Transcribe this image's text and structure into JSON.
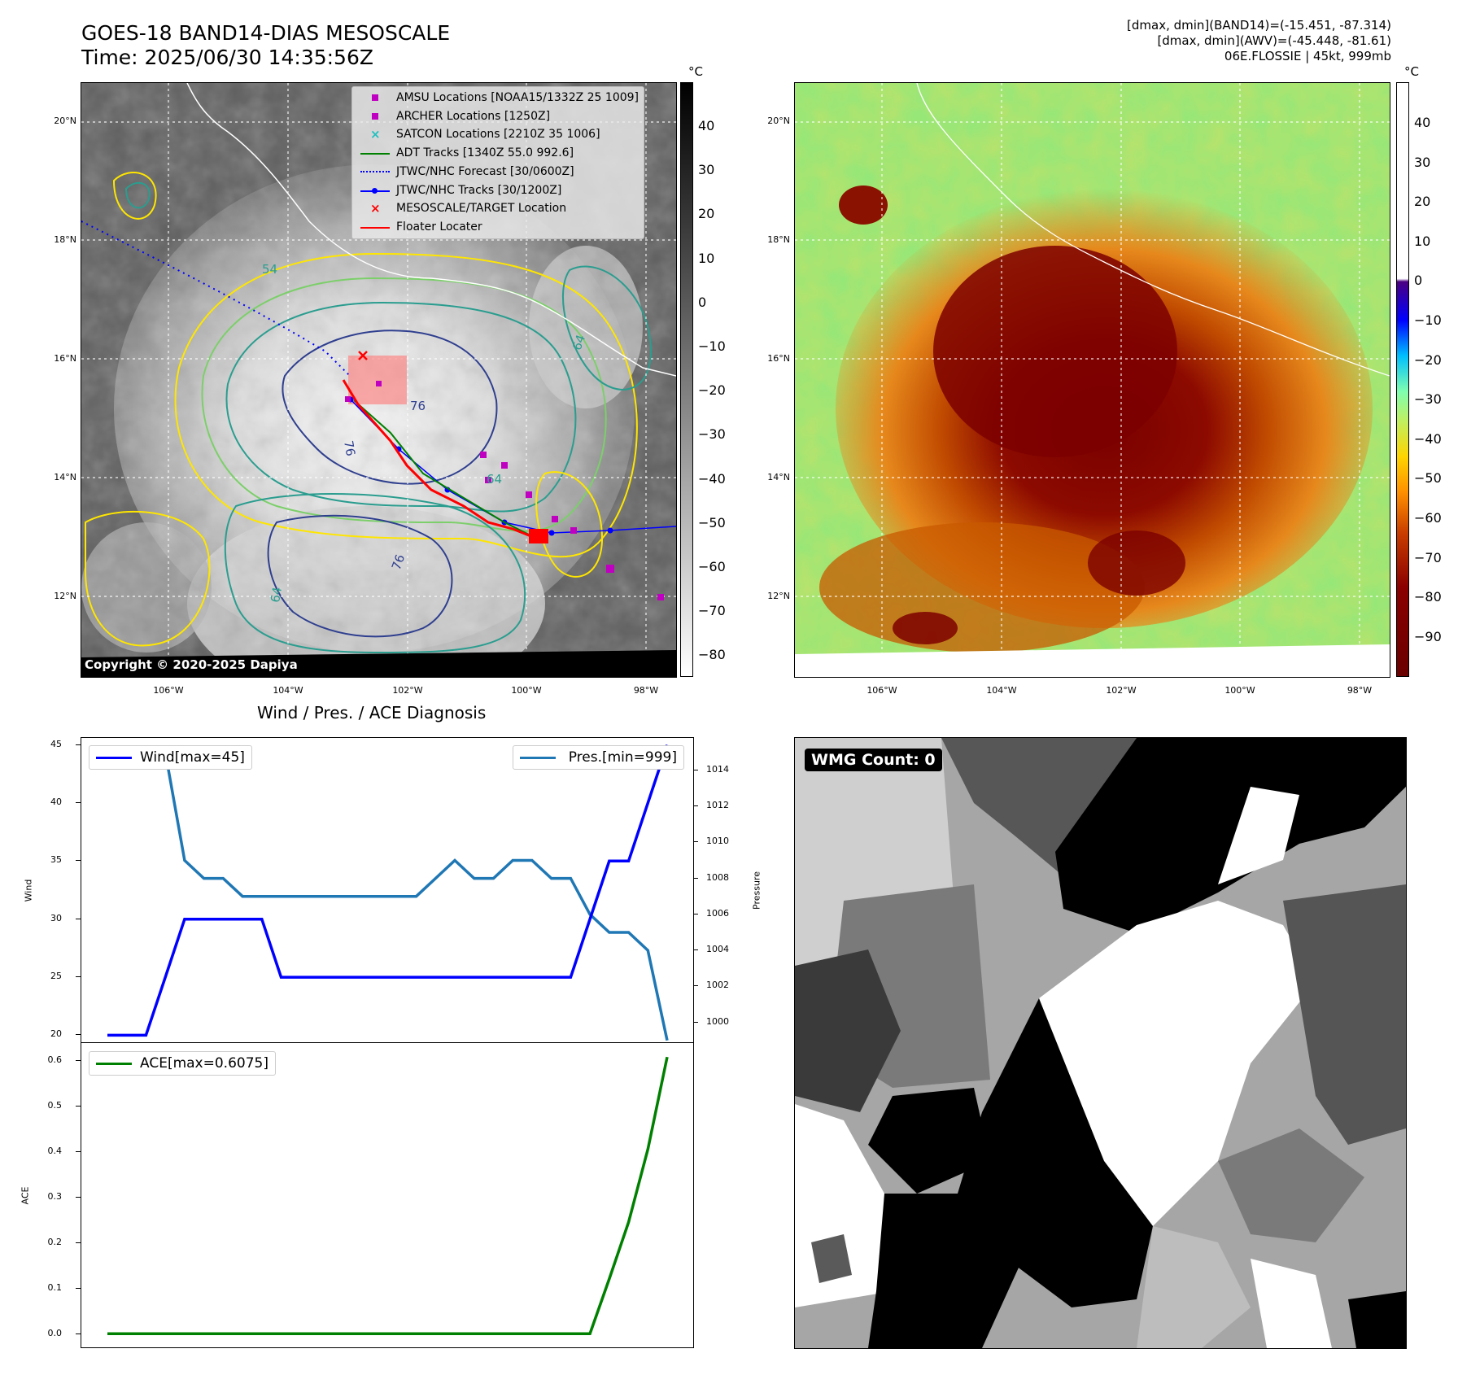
{
  "header": {
    "title_line1": "GOES-18 BAND14-DIAS MESOSCALE",
    "title_line2": "Time: 2025/06/30 14:35:56Z",
    "info_line1": "[dmax, dmin](BAND14)=(-15.451, -87.314)",
    "info_line2": "[dmax, dmin](AWV)=(-45.448, -81.61)",
    "info_line3": "06E.FLOSSIE | 45kt, 999mb"
  },
  "map_axes": {
    "lat_labels": [
      "20°N",
      "18°N",
      "16°N",
      "14°N",
      "12°N"
    ],
    "lon_labels": [
      "106°W",
      "104°W",
      "102°W",
      "100°W",
      "98°W"
    ]
  },
  "colorbar_ir": {
    "unit": "°C",
    "ticks": [
      "40",
      "30",
      "20",
      "10",
      "0",
      "−10",
      "−20",
      "−30",
      "−40",
      "−50",
      "−60",
      "−70",
      "−80"
    ]
  },
  "colorbar_dias": {
    "unit": "°C",
    "ticks": [
      "40",
      "30",
      "20",
      "10",
      "0",
      "−10",
      "−20",
      "−30",
      "−40",
      "−50",
      "−60",
      "−70",
      "−80",
      "−90"
    ]
  },
  "ir_contour_labels": [
    "54",
    "76",
    "76",
    "64",
    "64",
    "64",
    "76"
  ],
  "legend": {
    "items": [
      {
        "label": "AMSU Locations [NOAA15/1332Z 25 1009]",
        "symbol": "square",
        "color": "#c000c0"
      },
      {
        "label": "ARCHER Locations [1250Z]",
        "symbol": "square",
        "color": "#c000c0"
      },
      {
        "label": "SATCON Locations [2210Z 35 1006]",
        "symbol": "x",
        "color": "#20c0c0"
      },
      {
        "label": "ADT Tracks [1340Z 55.0 992.6]",
        "symbol": "line",
        "color": "#008000"
      },
      {
        "label": "JTWC/NHC Forecast [30/0600Z]",
        "symbol": "dotted",
        "color": "#0000ff"
      },
      {
        "label": "JTWC/NHC Tracks [30/1200Z]",
        "symbol": "line-dot",
        "color": "#0000ff"
      },
      {
        "label": "MESOSCALE/TARGET Location",
        "symbol": "x",
        "color": "#ff0000"
      },
      {
        "label": "Floater Locater",
        "symbol": "line",
        "color": "#ff0000"
      }
    ]
  },
  "copyright": "Copyright © 2020-2025 Dapiya",
  "diagnosis": {
    "title": "Wind / Pres. / ACE Diagnosis",
    "wind_label": "Wind",
    "pressure_label": "Pressure",
    "ace_label": "ACE",
    "wind_legend": "Wind[max=45]",
    "pressure_legend": "Pres.[min=999]",
    "ace_legend": "ACE[max=0.6075]",
    "wind_color": "#0000ff",
    "pressure_color": "#1f77b4",
    "ace_color": "#008000"
  },
  "chart_data": [
    {
      "type": "line",
      "x": [
        0,
        1,
        2,
        3,
        4,
        5,
        6,
        7,
        8,
        9,
        10,
        11,
        12,
        13,
        14,
        15,
        16,
        17,
        18,
        19,
        20,
        21,
        22,
        23,
        24,
        25,
        26,
        27,
        28,
        29
      ],
      "series": [
        {
          "name": "Wind[max=45]",
          "axis": "left",
          "values": [
            20,
            20,
            20,
            25,
            30,
            30,
            30,
            30,
            30,
            25,
            25,
            25,
            25,
            25,
            25,
            25,
            25,
            25,
            25,
            25,
            25,
            25,
            25,
            25,
            25,
            30,
            35,
            35,
            40,
            45
          ]
        },
        {
          "name": "Pres.[min=999]",
          "axis": "right",
          "values": [
            1015,
            1015,
            1015,
            1015,
            1009,
            1008,
            1008,
            1007,
            1007,
            1007,
            1007,
            1007,
            1007,
            1007,
            1007,
            1007,
            1007,
            1008,
            1009,
            1008,
            1008,
            1009,
            1009,
            1008,
            1008,
            1006,
            1005,
            1005,
            1004,
            999
          ]
        }
      ],
      "ylabel": "Wind",
      "ylabel_right": "Pressure",
      "ylim": [
        19.4,
        45.6
      ],
      "ylim_right": [
        998.9,
        1015.8
      ],
      "yticks": [
        "20",
        "25",
        "30",
        "35",
        "40",
        "45"
      ],
      "yticks_right": [
        "1000",
        "1002",
        "1004",
        "1006",
        "1008",
        "1010",
        "1012",
        "1014"
      ],
      "legend": "top-left / top-right"
    },
    {
      "type": "line",
      "x": [
        0,
        1,
        2,
        3,
        4,
        5,
        6,
        7,
        8,
        9,
        10,
        11,
        12,
        13,
        14,
        15,
        16,
        17,
        18,
        19,
        20,
        21,
        22,
        23,
        24,
        25,
        26,
        27,
        28,
        29
      ],
      "series": [
        {
          "name": "ACE[max=0.6075]",
          "values": [
            0,
            0,
            0,
            0,
            0,
            0,
            0,
            0,
            0,
            0,
            0,
            0,
            0,
            0,
            0,
            0,
            0,
            0,
            0,
            0,
            0,
            0,
            0,
            0,
            0,
            0,
            0.12,
            0.245,
            0.405,
            0.6075
          ]
        }
      ],
      "ylabel": "ACE",
      "ylim": [
        -0.03,
        0.64
      ],
      "yticks": [
        "0.0",
        "0.1",
        "0.2",
        "0.3",
        "0.4",
        "0.5",
        "0.6"
      ],
      "legend": "top-left"
    }
  ],
  "wmg": {
    "badge": "WMG Count: 0"
  }
}
